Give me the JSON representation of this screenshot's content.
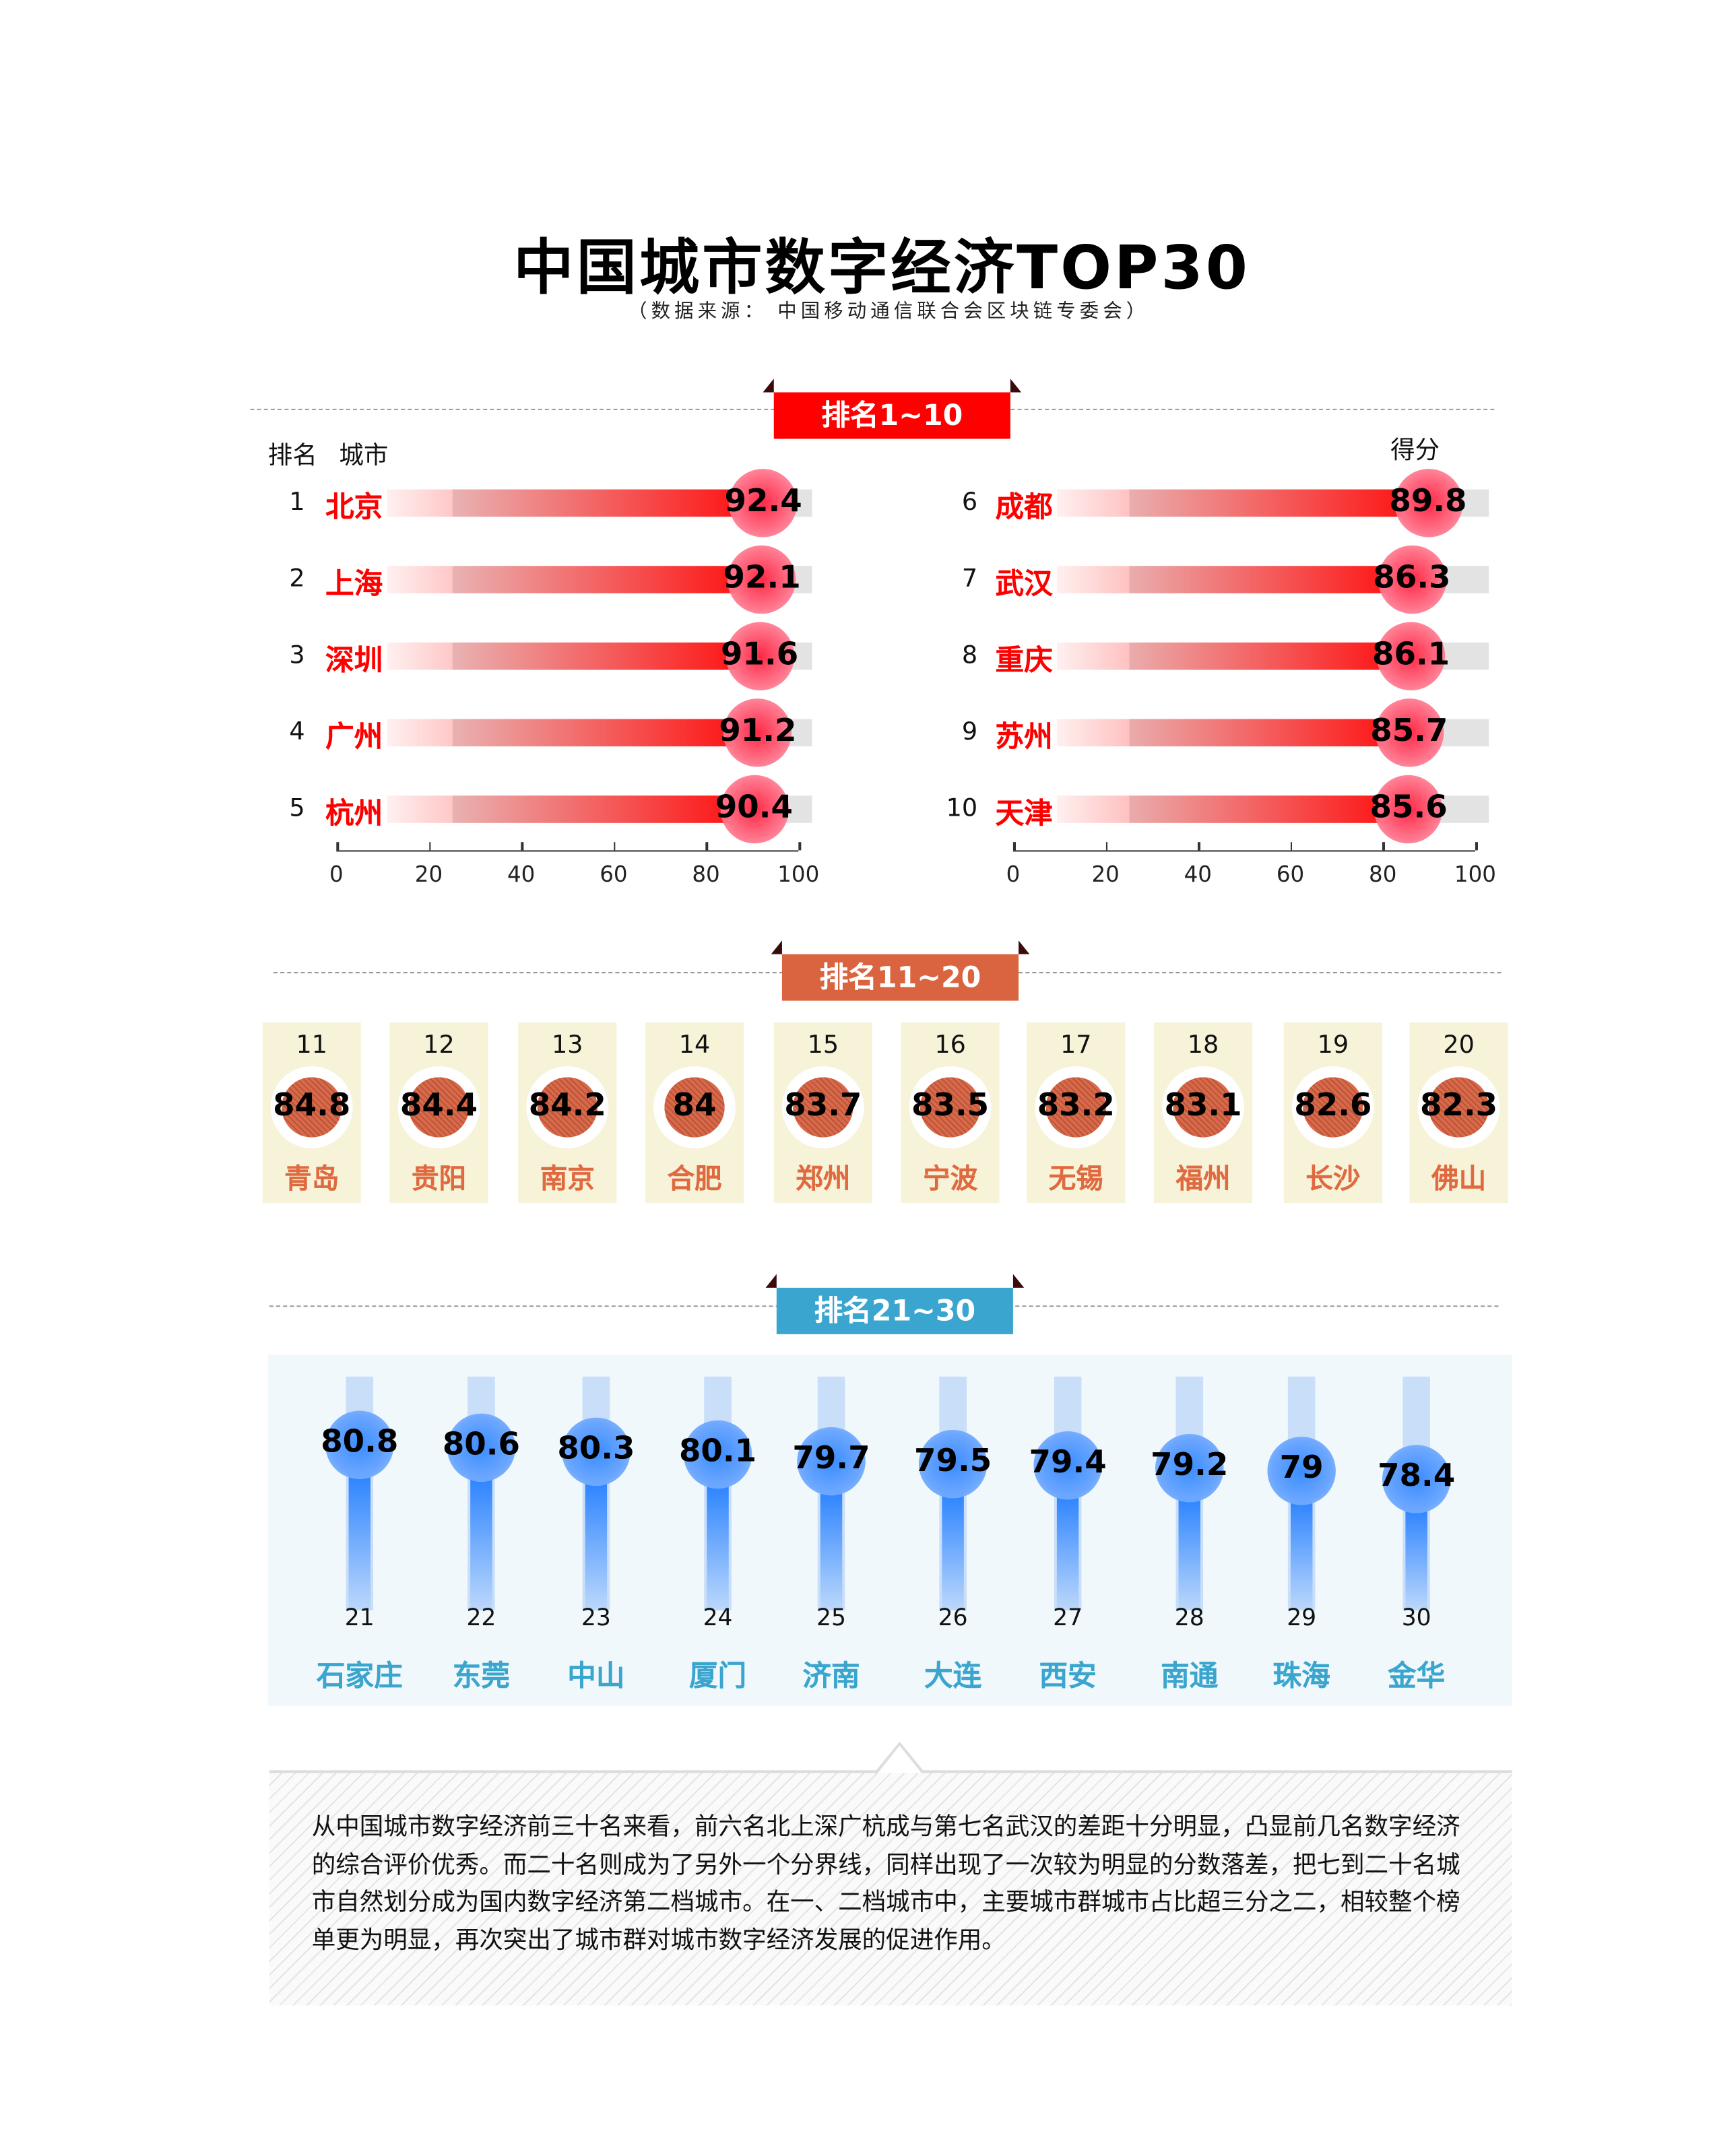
{
  "title": "中国城市数字经济TOP30",
  "subtitle": "（数据来源： 中国移动通信联合会区块链专委会）",
  "colors": {
    "section1": "#ff0000",
    "section2": "#d9643f",
    "section3": "#3aa5cf"
  },
  "section1": {
    "tab": "排名1~10",
    "header_rank": "排名",
    "header_city": "城市",
    "header_score": "得分"
  },
  "section2": {
    "tab": "排名11~20"
  },
  "section3": {
    "tab": "排名21~30"
  },
  "chart_data": [
    {
      "type": "bar",
      "orientation": "horizontal",
      "xlim": [
        0,
        100
      ],
      "x_ticks": [
        "0",
        "20",
        "40",
        "60",
        "80",
        "100"
      ],
      "rows": [
        {
          "rank": "1",
          "city": "北京",
          "value": 92.4
        },
        {
          "rank": "2",
          "city": "上海",
          "value": 92.1
        },
        {
          "rank": "3",
          "city": "深圳",
          "value": 91.6
        },
        {
          "rank": "4",
          "city": "广州",
          "value": 91.2
        },
        {
          "rank": "5",
          "city": "杭州",
          "value": 90.4
        }
      ]
    },
    {
      "type": "bar",
      "orientation": "horizontal",
      "xlim": [
        0,
        100
      ],
      "x_ticks": [
        "0",
        "20",
        "40",
        "60",
        "80",
        "100"
      ],
      "rows": [
        {
          "rank": "6",
          "city": "成都",
          "value": 89.8
        },
        {
          "rank": "7",
          "city": "武汉",
          "value": 86.3
        },
        {
          "rank": "8",
          "city": "重庆",
          "value": 86.1
        },
        {
          "rank": "9",
          "city": "苏州",
          "value": 85.7
        },
        {
          "rank": "10",
          "city": "天津",
          "value": 85.6
        }
      ]
    },
    {
      "type": "table",
      "rows": [
        {
          "rank": "11",
          "city": "青岛",
          "value": "84.8"
        },
        {
          "rank": "12",
          "city": "贵阳",
          "value": "84.4"
        },
        {
          "rank": "13",
          "city": "南京",
          "value": "84.2"
        },
        {
          "rank": "14",
          "city": "合肥",
          "value": "84"
        },
        {
          "rank": "15",
          "city": "郑州",
          "value": "83.7"
        },
        {
          "rank": "16",
          "city": "宁波",
          "value": "83.5"
        },
        {
          "rank": "17",
          "city": "无锡",
          "value": "83.2"
        },
        {
          "rank": "18",
          "city": "福州",
          "value": "83.1"
        },
        {
          "rank": "19",
          "city": "长沙",
          "value": "82.6"
        },
        {
          "rank": "20",
          "city": "佛山",
          "value": "82.3"
        }
      ]
    },
    {
      "type": "bar",
      "orientation": "vertical",
      "rows": [
        {
          "rank": "21",
          "city": "石家庄",
          "value": 80.8
        },
        {
          "rank": "22",
          "city": "东莞",
          "value": 80.6
        },
        {
          "rank": "23",
          "city": "中山",
          "value": 80.3
        },
        {
          "rank": "24",
          "city": "厦门",
          "value": 80.1
        },
        {
          "rank": "25",
          "city": "济南",
          "value": 79.7
        },
        {
          "rank": "26",
          "city": "大连",
          "value": 79.5
        },
        {
          "rank": "27",
          "city": "西安",
          "value": 79.4
        },
        {
          "rank": "28",
          "city": "南通",
          "value": 79.2
        },
        {
          "rank": "29",
          "city": "珠海",
          "value": 79
        },
        {
          "rank": "30",
          "city": "金华",
          "value": 78.4
        }
      ]
    }
  ],
  "summary": "从中国城市数字经济前三十名来看，前六名北上深广杭成与第七名武汉的差距十分明显，凸显前几名数字经济的综合评价优秀。而二十名则成为了另外一个分界线，同样出现了一次较为明显的分数落差，把七到二十名城市自然划分成为国内数字经济第二档城市。在一、二档城市中，主要城市群城市占比超三分之二，相较整个榜单更为明显，再次突出了城市群对城市数字经济发展的促进作用。"
}
